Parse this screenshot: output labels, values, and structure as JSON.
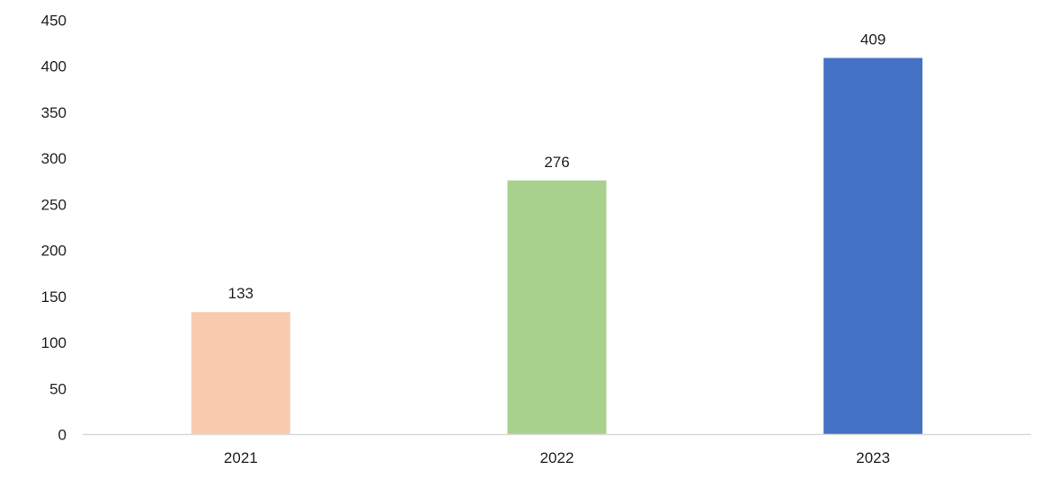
{
  "chart_data": {
    "type": "bar",
    "title": "",
    "xlabel": "",
    "ylabel": "",
    "categories": [
      "2021",
      "2022",
      "2023"
    ],
    "values": [
      133,
      276,
      409
    ],
    "data_labels": [
      "133",
      "276",
      "409"
    ],
    "colors": [
      "#F8CBAD",
      "#A9D18E",
      "#4472C4"
    ],
    "ylim": [
      0,
      450
    ],
    "yticks": [
      0,
      50,
      100,
      150,
      200,
      250,
      300,
      350,
      400,
      450
    ],
    "grid": false,
    "legend": "none",
    "axis_color": "#D9D9D9"
  }
}
